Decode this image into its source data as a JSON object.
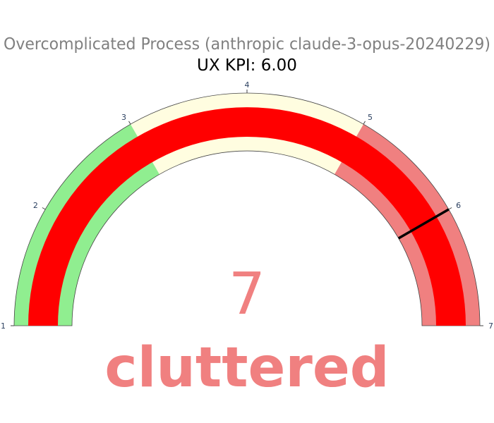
{
  "chart_data": {
    "type": "gauge",
    "title": "Overcomplicated Process (anthropic claude-3-opus-20240229)",
    "subtitle": "UX KPI: 6.00",
    "range": [
      1,
      7
    ],
    "ticks": [
      1,
      2,
      3,
      4,
      5,
      6,
      7
    ],
    "tick_labels": [
      "1",
      "2",
      "3",
      "4",
      "5",
      "6",
      "7"
    ],
    "steps": [
      {
        "range": [
          1,
          3
        ],
        "color": "#90ee90"
      },
      {
        "range": [
          3,
          5
        ],
        "color": "#fffde0"
      },
      {
        "range": [
          5,
          7
        ],
        "color": "#f08080"
      }
    ],
    "bar": {
      "value": 7,
      "color": "#ff0000"
    },
    "threshold": {
      "value": 6,
      "color": "#000000"
    },
    "value_display": "7",
    "value_word": "cluttered",
    "value_color": "#f08080",
    "title_color": "#808080",
    "subtitle_color": "#000000",
    "tick_color": "#2a3f5f",
    "outline_color": "#444444"
  }
}
